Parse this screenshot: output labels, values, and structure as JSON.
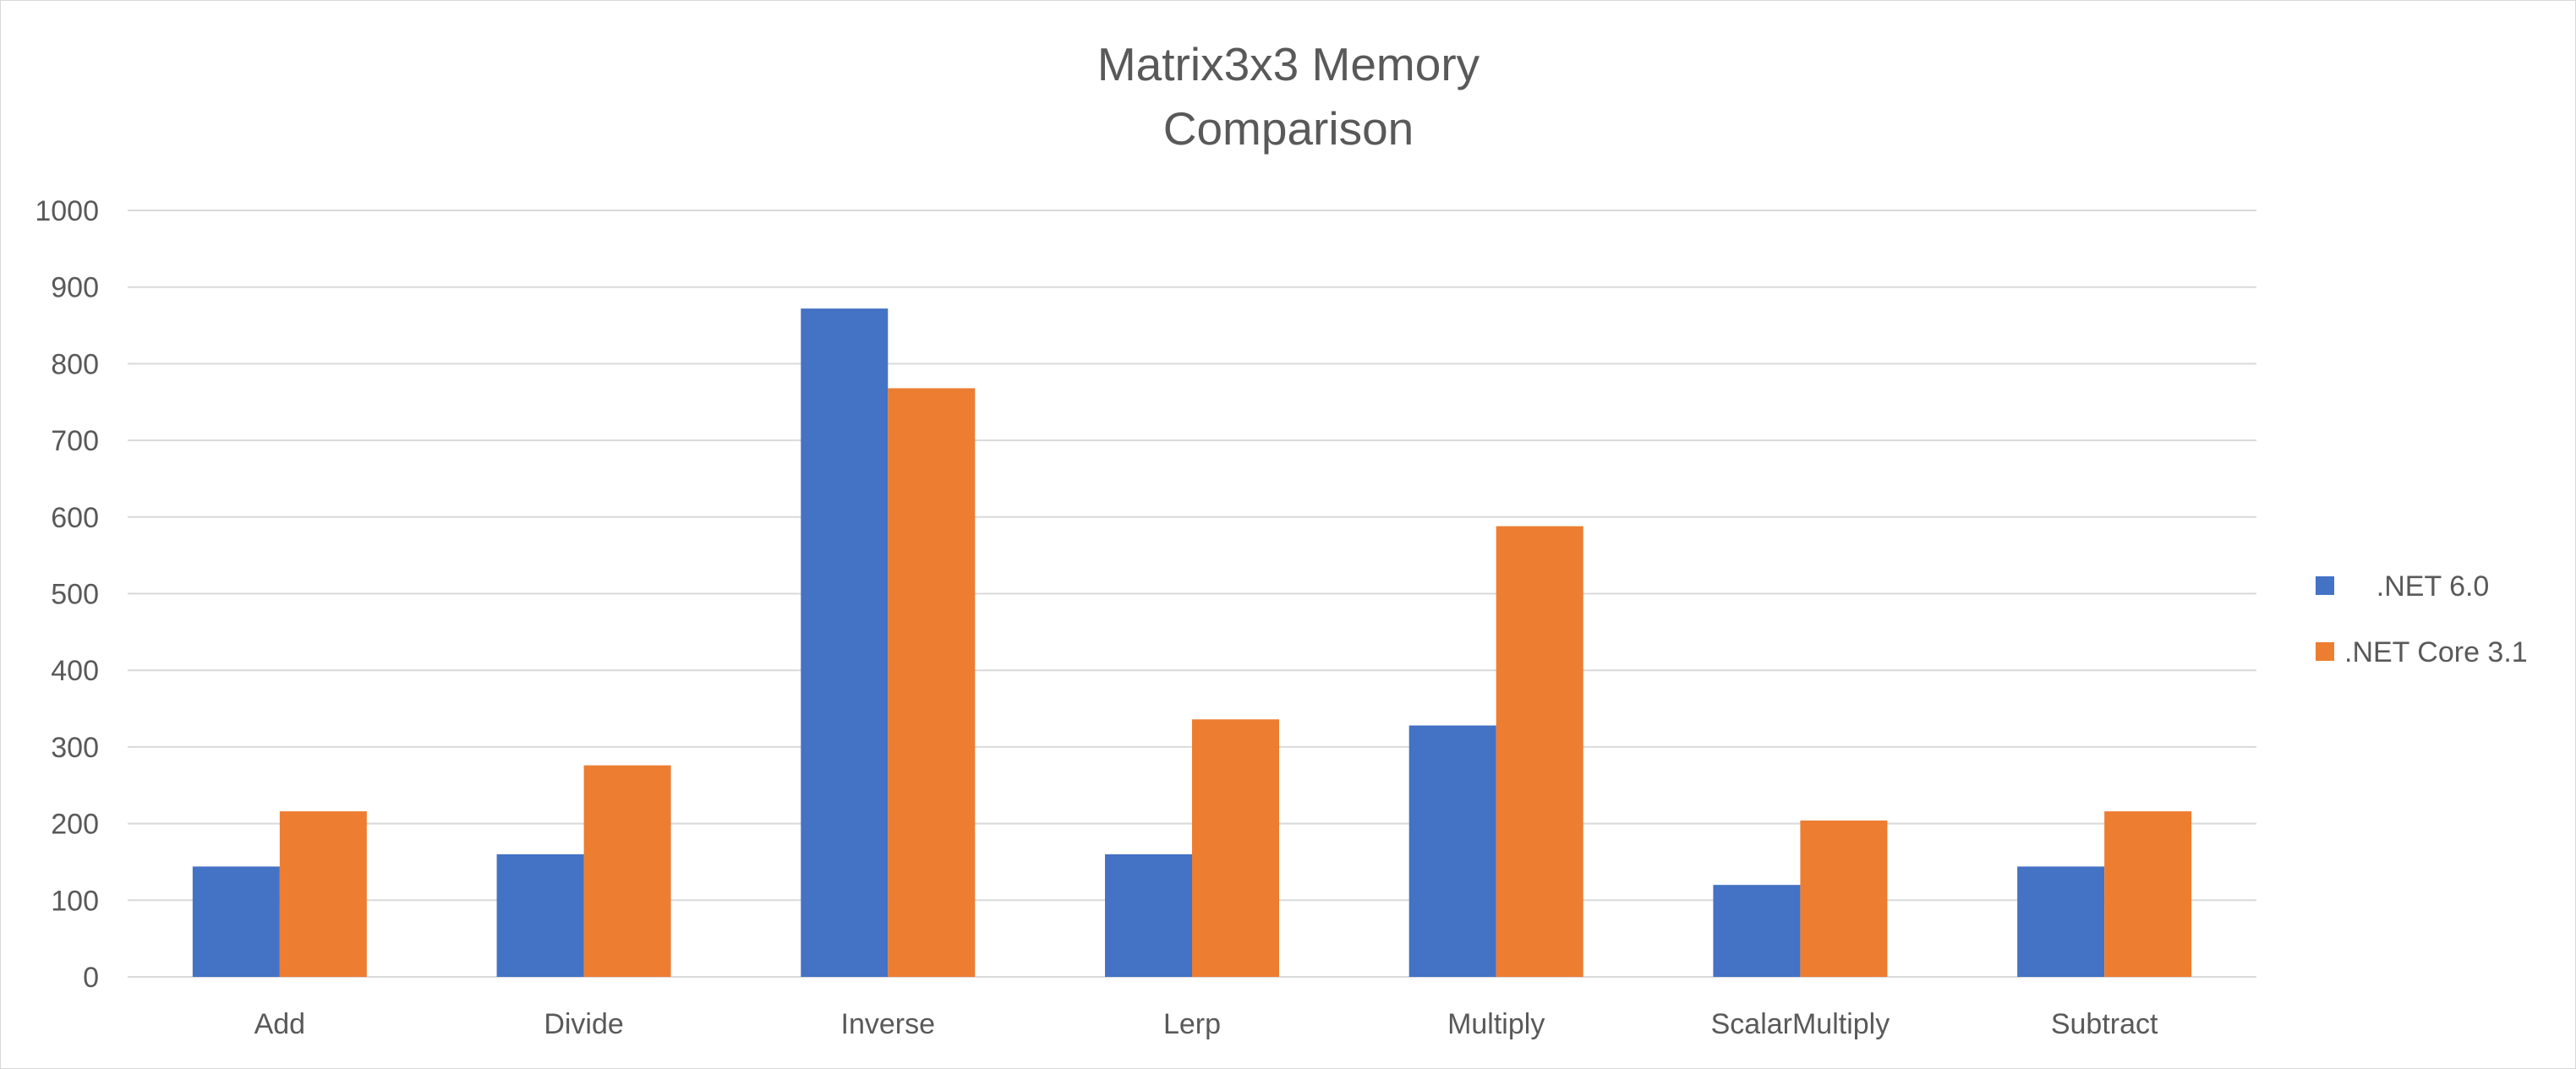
{
  "chart_data": {
    "type": "bar",
    "title_lines": [
      "Matrix3x3 Memory",
      "Comparison"
    ],
    "categories": [
      "Add",
      "Divide",
      "Inverse",
      "Lerp",
      "Multiply",
      "ScalarMultiply",
      "Subtract"
    ],
    "series": [
      {
        "name": "    .NET 6.0",
        "color": "#4472C4",
        "values": [
          144,
          160,
          872,
          160,
          328,
          120,
          144
        ]
      },
      {
        "name": ".NET Core 3.1",
        "color": "#ED7D31",
        "values": [
          216,
          276,
          768,
          336,
          588,
          204,
          216
        ]
      }
    ],
    "ylim": [
      0,
      1000
    ],
    "yticks": [
      "0",
      "100",
      "200",
      "300",
      "400",
      "500",
      "600",
      "700",
      "800",
      "900",
      "1000"
    ],
    "grid": true,
    "legend_position": "right",
    "gridline_color": "#d9d9d9"
  }
}
